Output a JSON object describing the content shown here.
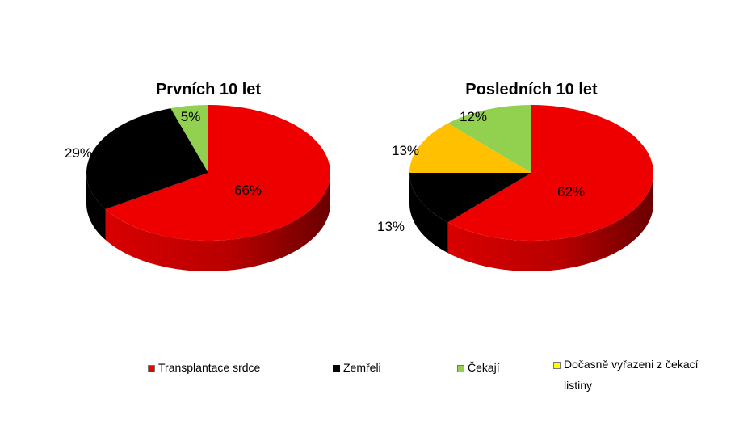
{
  "chart_data": [
    {
      "type": "pie",
      "title": "Prvních 10 let",
      "categories": [
        "Transplantace srdce",
        "Zemřeli",
        "Čekají"
      ],
      "values": [
        66,
        29,
        5
      ],
      "labels": [
        "66%",
        "29%",
        "5%"
      ],
      "colors": [
        "#ee0000",
        "#000000",
        "#92d050"
      ]
    },
    {
      "type": "pie",
      "title": "Posledních 10 let",
      "categories": [
        "Transplantace srdce",
        "Zemřeli",
        "Dočasně vyřazeni z čekací listiny",
        "Čekají"
      ],
      "values": [
        62,
        13,
        13,
        12
      ],
      "labels": [
        "62%",
        "13%",
        "13%",
        "12%"
      ],
      "colors": [
        "#ee0000",
        "#000000",
        "#ffc000",
        "#92d050"
      ]
    }
  ],
  "legend": [
    {
      "label": "Transplantace srdce",
      "color": "#ee0000"
    },
    {
      "label": "Zemřeli",
      "color": "#000000"
    },
    {
      "label": "Čekají",
      "color": "#92d050"
    },
    {
      "label": "Dočasně vyřazeni z čekací listiny",
      "color": "#ffff00"
    }
  ]
}
